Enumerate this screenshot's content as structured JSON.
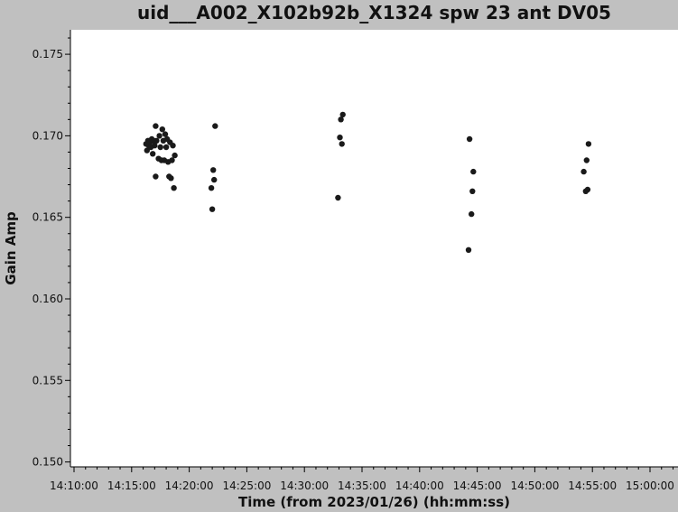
{
  "chart_data": {
    "type": "scatter",
    "title": "uid___A002_X102b92b_X1324 spw 23 ant DV05",
    "xlabel": "Time (from 2023/01/26) (hh:mm:ss)",
    "ylabel": "Gain Amp",
    "xlim": [
      "14:10:00",
      "15:00:00"
    ],
    "ylim": [
      0.1497,
      0.1765
    ],
    "x_ticks": [
      "14:10:00",
      "14:15:00",
      "14:20:00",
      "14:25:00",
      "14:30:00",
      "14:35:00",
      "14:40:00",
      "14:45:00",
      "14:50:00",
      "14:55:00",
      "15:00:00"
    ],
    "y_ticks": [
      0.15,
      0.155,
      0.16,
      0.165,
      0.17,
      0.175
    ],
    "y_tick_labels": [
      "0.150",
      "0.155",
      "0.160",
      "0.165",
      "0.170",
      "0.175"
    ],
    "grid": false,
    "colors": {
      "marker": "#1a1a1a",
      "background": "#c0c0c0",
      "plot_area": "#ffffff"
    },
    "series": [
      {
        "points": [
          [
            "14:16:15",
            0.1695
          ],
          [
            "14:16:20",
            0.1691
          ],
          [
            "14:16:25",
            0.1697
          ],
          [
            "14:16:30",
            0.1694
          ],
          [
            "14:16:35",
            0.1696
          ],
          [
            "14:16:40",
            0.1693
          ],
          [
            "14:16:45",
            0.1698
          ],
          [
            "14:16:50",
            0.1689
          ],
          [
            "14:16:55",
            0.1697
          ],
          [
            "14:17:00",
            0.1694
          ],
          [
            "14:17:05",
            0.1675
          ],
          [
            "14:17:05",
            0.1706
          ],
          [
            "14:17:10",
            0.1697
          ],
          [
            "14:17:20",
            0.1686
          ],
          [
            "14:17:25",
            0.17
          ],
          [
            "14:17:30",
            0.1693
          ],
          [
            "14:17:35",
            0.1685
          ],
          [
            "14:17:40",
            0.1704
          ],
          [
            "14:17:45",
            0.1697
          ],
          [
            "14:17:50",
            0.1685
          ],
          [
            "14:17:55",
            0.1701
          ],
          [
            "14:18:00",
            0.1693
          ],
          [
            "14:18:05",
            0.1698
          ],
          [
            "14:18:10",
            0.1684
          ],
          [
            "14:18:15",
            0.1675
          ],
          [
            "14:18:20",
            0.1696
          ],
          [
            "14:18:25",
            0.1674
          ],
          [
            "14:18:30",
            0.1685
          ],
          [
            "14:18:35",
            0.1694
          ],
          [
            "14:18:40",
            0.1668
          ],
          [
            "14:18:45",
            0.1688
          ],
          [
            "14:21:55",
            0.1668
          ],
          [
            "14:22:00",
            0.1655
          ],
          [
            "14:22:05",
            0.1679
          ],
          [
            "14:22:10",
            0.1673
          ],
          [
            "14:22:15",
            0.1706
          ],
          [
            "14:32:55",
            0.1662
          ],
          [
            "14:33:05",
            0.1699
          ],
          [
            "14:33:10",
            0.171
          ],
          [
            "14:33:15",
            0.1695
          ],
          [
            "14:33:20",
            0.1713
          ],
          [
            "14:44:15",
            0.163
          ],
          [
            "14:44:20",
            0.1698
          ],
          [
            "14:44:30",
            0.1652
          ],
          [
            "14:44:35",
            0.1666
          ],
          [
            "14:44:40",
            0.1678
          ],
          [
            "14:54:15",
            0.1678
          ],
          [
            "14:54:25",
            0.1666
          ],
          [
            "14:54:30",
            0.1685
          ],
          [
            "14:54:35",
            0.1667
          ],
          [
            "14:54:40",
            0.1695
          ]
        ]
      }
    ]
  }
}
